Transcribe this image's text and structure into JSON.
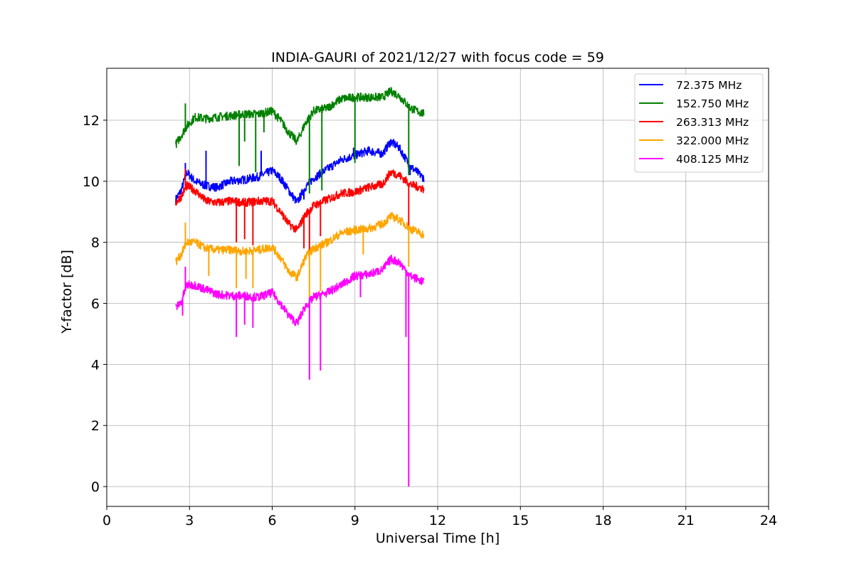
{
  "chart_data": {
    "type": "line",
    "title": "INDIA-GAURI of 2021/12/27 with focus code = 59",
    "xlabel": "Universal Time [h]",
    "ylabel": "Y-factor [dB]",
    "xlim": [
      0,
      24
    ],
    "ylim": [
      -0.65,
      13.7
    ],
    "xticks": [
      0,
      3,
      6,
      9,
      12,
      15,
      18,
      21,
      24
    ],
    "yticks": [
      0,
      2,
      4,
      6,
      8,
      10,
      12
    ],
    "xtick_labels": [
      "0",
      "3",
      "6",
      "9",
      "12",
      "15",
      "18",
      "21",
      "24"
    ],
    "ytick_labels": [
      "0",
      "2",
      "4",
      "6",
      "8",
      "10",
      "12"
    ],
    "grid": true,
    "legend_position": "top-right",
    "series": [
      {
        "name": "  72.375 MHz",
        "color": "#0000ff",
        "points": [
          [
            2.5,
            9.4
          ],
          [
            2.7,
            9.7
          ],
          [
            2.9,
            10.3
          ],
          [
            3.2,
            10.0
          ],
          [
            3.6,
            9.85
          ],
          [
            4.0,
            9.8
          ],
          [
            4.5,
            10.0
          ],
          [
            5.0,
            10.05
          ],
          [
            5.5,
            10.15
          ],
          [
            6.0,
            10.35
          ],
          [
            6.3,
            10.1
          ],
          [
            6.6,
            9.7
          ],
          [
            6.9,
            9.3
          ],
          [
            7.2,
            9.8
          ],
          [
            7.5,
            10.1
          ],
          [
            8.0,
            10.4
          ],
          [
            8.5,
            10.7
          ],
          [
            9.0,
            10.85
          ],
          [
            9.5,
            11.0
          ],
          [
            10.0,
            10.9
          ],
          [
            10.3,
            11.3
          ],
          [
            10.6,
            11.1
          ],
          [
            11.0,
            10.5
          ],
          [
            11.5,
            10.1
          ]
        ],
        "spikes": [
          [
            2.85,
            10.6
          ],
          [
            3.6,
            11.0
          ],
          [
            5.6,
            11.0
          ],
          [
            7.15,
            9.4
          ],
          [
            8.95,
            11.1
          ],
          [
            11.0,
            10.2
          ]
        ]
      },
      {
        "name": "152.750 MHz",
        "color": "#008000",
        "points": [
          [
            2.5,
            11.2
          ],
          [
            2.7,
            11.5
          ],
          [
            2.9,
            11.8
          ],
          [
            3.2,
            12.1
          ],
          [
            3.6,
            12.05
          ],
          [
            4.0,
            12.1
          ],
          [
            4.5,
            12.15
          ],
          [
            5.0,
            12.2
          ],
          [
            5.5,
            12.2
          ],
          [
            6.0,
            12.3
          ],
          [
            6.3,
            12.0
          ],
          [
            6.6,
            11.6
          ],
          [
            6.9,
            11.3
          ],
          [
            7.2,
            11.9
          ],
          [
            7.5,
            12.3
          ],
          [
            8.0,
            12.4
          ],
          [
            8.5,
            12.7
          ],
          [
            9.0,
            12.75
          ],
          [
            9.5,
            12.75
          ],
          [
            10.0,
            12.75
          ],
          [
            10.3,
            12.95
          ],
          [
            10.6,
            12.8
          ],
          [
            11.0,
            12.4
          ],
          [
            11.5,
            12.2
          ]
        ],
        "spikes": [
          [
            2.85,
            12.55
          ],
          [
            4.8,
            10.5
          ],
          [
            5.0,
            11.3
          ],
          [
            5.4,
            10.3
          ],
          [
            5.7,
            11.6
          ],
          [
            7.35,
            9.6
          ],
          [
            7.8,
            9.7
          ],
          [
            9.0,
            10.6
          ],
          [
            10.95,
            10.2
          ]
        ]
      },
      {
        "name": "263.313 MHz",
        "color": "#ff0000",
        "points": [
          [
            2.5,
            9.3
          ],
          [
            2.7,
            9.5
          ],
          [
            2.9,
            9.85
          ],
          [
            3.2,
            9.7
          ],
          [
            3.6,
            9.35
          ],
          [
            4.0,
            9.3
          ],
          [
            4.5,
            9.35
          ],
          [
            5.0,
            9.3
          ],
          [
            5.5,
            9.35
          ],
          [
            6.0,
            9.35
          ],
          [
            6.3,
            9.0
          ],
          [
            6.6,
            8.6
          ],
          [
            6.9,
            8.4
          ],
          [
            7.2,
            8.9
          ],
          [
            7.5,
            9.2
          ],
          [
            8.0,
            9.4
          ],
          [
            8.5,
            9.6
          ],
          [
            9.0,
            9.65
          ],
          [
            9.5,
            9.8
          ],
          [
            10.0,
            9.9
          ],
          [
            10.3,
            10.3
          ],
          [
            10.6,
            10.2
          ],
          [
            11.0,
            9.9
          ],
          [
            11.5,
            9.75
          ]
        ],
        "spikes": [
          [
            2.85,
            10.4
          ],
          [
            4.7,
            8.0
          ],
          [
            5.0,
            8.1
          ],
          [
            5.3,
            7.9
          ],
          [
            7.15,
            7.8
          ],
          [
            7.35,
            7.6
          ],
          [
            7.75,
            8.2
          ],
          [
            10.95,
            8.4
          ]
        ]
      },
      {
        "name": "322.000 MHz",
        "color": "#ffa500",
        "points": [
          [
            2.5,
            7.35
          ],
          [
            2.7,
            7.6
          ],
          [
            2.9,
            8.0
          ],
          [
            3.2,
            8.0
          ],
          [
            3.6,
            7.8
          ],
          [
            4.0,
            7.75
          ],
          [
            4.5,
            7.75
          ],
          [
            5.0,
            7.7
          ],
          [
            5.5,
            7.75
          ],
          [
            6.0,
            7.85
          ],
          [
            6.3,
            7.5
          ],
          [
            6.6,
            7.05
          ],
          [
            6.9,
            6.85
          ],
          [
            7.2,
            7.5
          ],
          [
            7.5,
            7.8
          ],
          [
            8.0,
            8.0
          ],
          [
            8.5,
            8.3
          ],
          [
            9.0,
            8.4
          ],
          [
            9.5,
            8.45
          ],
          [
            10.0,
            8.6
          ],
          [
            10.3,
            8.85
          ],
          [
            10.6,
            8.75
          ],
          [
            11.0,
            8.45
          ],
          [
            11.5,
            8.25
          ]
        ],
        "spikes": [
          [
            2.85,
            8.65
          ],
          [
            3.7,
            6.9
          ],
          [
            4.7,
            6.5
          ],
          [
            5.05,
            6.8
          ],
          [
            5.3,
            6.5
          ],
          [
            7.35,
            6.2
          ],
          [
            7.75,
            6.4
          ],
          [
            9.3,
            7.6
          ],
          [
            10.95,
            7.2
          ]
        ]
      },
      {
        "name": "408.125 MHz",
        "color": "#ff00ff",
        "points": [
          [
            2.5,
            5.85
          ],
          [
            2.7,
            6.05
          ],
          [
            2.9,
            6.6
          ],
          [
            3.2,
            6.6
          ],
          [
            3.6,
            6.45
          ],
          [
            4.0,
            6.3
          ],
          [
            4.5,
            6.25
          ],
          [
            5.0,
            6.25
          ],
          [
            5.5,
            6.2
          ],
          [
            6.0,
            6.35
          ],
          [
            6.3,
            6.0
          ],
          [
            6.6,
            5.6
          ],
          [
            6.9,
            5.35
          ],
          [
            7.2,
            5.9
          ],
          [
            7.5,
            6.2
          ],
          [
            8.0,
            6.35
          ],
          [
            8.5,
            6.6
          ],
          [
            9.0,
            6.9
          ],
          [
            9.5,
            6.95
          ],
          [
            10.0,
            7.1
          ],
          [
            10.3,
            7.45
          ],
          [
            10.6,
            7.35
          ],
          [
            11.0,
            6.9
          ],
          [
            11.5,
            6.7
          ]
        ],
        "spikes": [
          [
            2.75,
            5.6
          ],
          [
            2.85,
            7.2
          ],
          [
            4.7,
            4.9
          ],
          [
            5.0,
            5.3
          ],
          [
            5.3,
            5.2
          ],
          [
            7.35,
            3.5
          ],
          [
            7.75,
            3.8
          ],
          [
            9.2,
            6.2
          ],
          [
            10.85,
            4.9
          ],
          [
            10.95,
            0.0
          ]
        ]
      }
    ]
  }
}
